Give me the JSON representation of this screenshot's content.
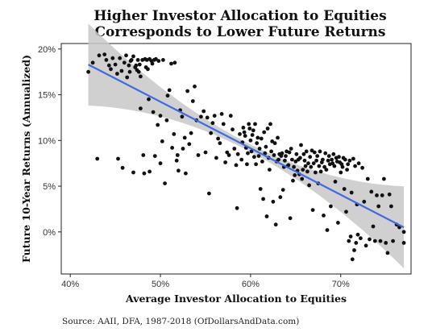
{
  "chart_data": {
    "type": "scatter",
    "title_lines": [
      "Higher Investor Allocation to Equities",
      "Corresponds to Lower Future Returns"
    ],
    "xlabel": "Average Investor Allocation to Equities",
    "ylabel": "Future 10-Year Returns (Annualized)",
    "source": "Source: AAII, DFA, 1987-2018 (OfDollarsAndData.com)",
    "xlim": [
      0.39,
      0.778
    ],
    "ylim": [
      -0.046,
      0.206
    ],
    "x_ticks": [
      0.4,
      0.5,
      0.6,
      0.7
    ],
    "x_tick_labels": [
      "40%",
      "50%",
      "60%",
      "70%"
    ],
    "y_ticks": [
      0.0,
      0.05,
      0.1,
      0.15,
      0.2
    ],
    "y_tick_labels": [
      "0%",
      "5%",
      "10%",
      "15%",
      "20%"
    ],
    "grid": false,
    "colors": {
      "points": "#111111",
      "trend_line": "#4169e1",
      "confidence_band": "#c8c8c8"
    },
    "trend_line": {
      "x": [
        0.42,
        0.77
      ],
      "y": [
        0.183,
        0.005
      ]
    },
    "points": [
      [
        0.42,
        0.175
      ],
      [
        0.425,
        0.185
      ],
      [
        0.43,
        0.08
      ],
      [
        0.432,
        0.193
      ],
      [
        0.438,
        0.194
      ],
      [
        0.44,
        0.188
      ],
      [
        0.443,
        0.182
      ],
      [
        0.445,
        0.178
      ],
      [
        0.447,
        0.19
      ],
      [
        0.45,
        0.183
      ],
      [
        0.452,
        0.173
      ],
      [
        0.453,
        0.08
      ],
      [
        0.455,
        0.19
      ],
      [
        0.457,
        0.176
      ],
      [
        0.458,
        0.07
      ],
      [
        0.46,
        0.185
      ],
      [
        0.462,
        0.193
      ],
      [
        0.463,
        0.169
      ],
      [
        0.465,
        0.182
      ],
      [
        0.466,
        0.175
      ],
      [
        0.467,
        0.187
      ],
      [
        0.468,
        0.188
      ],
      [
        0.47,
        0.192
      ],
      [
        0.47,
        0.065
      ],
      [
        0.472,
        0.18
      ],
      [
        0.473,
        0.182
      ],
      [
        0.474,
        0.177
      ],
      [
        0.475,
        0.188
      ],
      [
        0.476,
        0.175
      ],
      [
        0.477,
        0.183
      ],
      [
        0.478,
        0.17
      ],
      [
        0.478,
        0.135
      ],
      [
        0.48,
        0.188
      ],
      [
        0.481,
        0.084
      ],
      [
        0.482,
        0.064
      ],
      [
        0.483,
        0.189
      ],
      [
        0.484,
        0.18
      ],
      [
        0.485,
        0.188
      ],
      [
        0.486,
        0.178
      ],
      [
        0.487,
        0.145
      ],
      [
        0.488,
        0.189
      ],
      [
        0.488,
        0.066
      ],
      [
        0.49,
        0.187
      ],
      [
        0.491,
        0.184
      ],
      [
        0.492,
        0.131
      ],
      [
        0.493,
        0.188
      ],
      [
        0.494,
        0.083
      ],
      [
        0.495,
        0.189
      ],
      [
        0.497,
        0.117
      ],
      [
        0.498,
        0.187
      ],
      [
        0.5,
        0.127
      ],
      [
        0.5,
        0.075
      ],
      [
        0.502,
        0.099
      ],
      [
        0.503,
        0.188
      ],
      [
        0.505,
        0.053
      ],
      [
        0.507,
        0.122
      ],
      [
        0.508,
        0.149
      ],
      [
        0.51,
        0.155
      ],
      [
        0.512,
        0.184
      ],
      [
        0.513,
        0.092
      ],
      [
        0.515,
        0.107
      ],
      [
        0.516,
        0.185
      ],
      [
        0.518,
        0.078
      ],
      [
        0.519,
        0.084
      ],
      [
        0.52,
        0.067
      ],
      [
        0.522,
        0.133
      ],
      [
        0.524,
        0.126
      ],
      [
        0.525,
        0.091
      ],
      [
        0.527,
        0.103
      ],
      [
        0.528,
        0.064
      ],
      [
        0.53,
        0.154
      ],
      [
        0.532,
        0.096
      ],
      [
        0.534,
        0.108
      ],
      [
        0.536,
        0.143
      ],
      [
        0.538,
        0.159
      ],
      [
        0.54,
        0.122
      ],
      [
        0.542,
        0.084
      ],
      [
        0.545,
        0.126
      ],
      [
        0.548,
        0.132
      ],
      [
        0.55,
        0.087
      ],
      [
        0.552,
        0.125
      ],
      [
        0.554,
        0.042
      ],
      [
        0.556,
        0.108
      ],
      [
        0.558,
        0.119
      ],
      [
        0.56,
        0.127
      ],
      [
        0.562,
        0.081
      ],
      [
        0.564,
        0.102
      ],
      [
        0.566,
        0.097
      ],
      [
        0.568,
        0.129
      ],
      [
        0.57,
        0.118
      ],
      [
        0.572,
        0.076
      ],
      [
        0.574,
        0.087
      ],
      [
        0.576,
        0.084
      ],
      [
        0.578,
        0.127
      ],
      [
        0.58,
        0.112
      ],
      [
        0.582,
        0.091
      ],
      [
        0.584,
        0.073
      ],
      [
        0.585,
        0.026
      ],
      [
        0.586,
        0.085
      ],
      [
        0.588,
        0.107
      ],
      [
        0.59,
        0.079
      ],
      [
        0.591,
        0.098
      ],
      [
        0.592,
        0.114
      ],
      [
        0.593,
        0.109
      ],
      [
        0.594,
        0.105
      ],
      [
        0.595,
        0.092
      ],
      [
        0.596,
        0.074
      ],
      [
        0.597,
        0.086
      ],
      [
        0.598,
        0.118
      ],
      [
        0.599,
        0.113
      ],
      [
        0.6,
        0.1
      ],
      [
        0.601,
        0.088
      ],
      [
        0.602,
        0.106
      ],
      [
        0.603,
        0.111
      ],
      [
        0.604,
        0.082
      ],
      [
        0.605,
        0.118
      ],
      [
        0.606,
        0.074
      ],
      [
        0.607,
        0.097
      ],
      [
        0.608,
        0.103
      ],
      [
        0.609,
        0.083
      ],
      [
        0.61,
        0.091
      ],
      [
        0.611,
        0.047
      ],
      [
        0.612,
        0.102
      ],
      [
        0.613,
        0.077
      ],
      [
        0.614,
        0.036
      ],
      [
        0.615,
        0.109
      ],
      [
        0.616,
        0.086
      ],
      [
        0.617,
        0.093
      ],
      [
        0.618,
        0.017
      ],
      [
        0.619,
        0.113
      ],
      [
        0.62,
        0.081
      ],
      [
        0.621,
        0.068
      ],
      [
        0.622,
        0.118
      ],
      [
        0.623,
        0.088
      ],
      [
        0.624,
        0.099
      ],
      [
        0.625,
        0.033
      ],
      [
        0.626,
        0.084
      ],
      [
        0.627,
        0.097
      ],
      [
        0.628,
        0.008
      ],
      [
        0.629,
        0.077
      ],
      [
        0.63,
        0.103
      ],
      [
        0.631,
        0.079
      ],
      [
        0.632,
        0.085
      ],
      [
        0.633,
        0.038
      ],
      [
        0.634,
        0.083
      ],
      [
        0.635,
        0.086
      ],
      [
        0.636,
        0.046
      ],
      [
        0.637,
        0.071
      ],
      [
        0.638,
        0.078
      ],
      [
        0.639,
        0.083
      ],
      [
        0.64,
        0.088
      ],
      [
        0.641,
        0.072
      ],
      [
        0.642,
        0.073
      ],
      [
        0.643,
        0.087
      ],
      [
        0.644,
        0.015
      ],
      [
        0.645,
        0.091
      ],
      [
        0.646,
        0.079
      ],
      [
        0.647,
        0.056
      ],
      [
        0.648,
        0.071
      ],
      [
        0.649,
        0.062
      ],
      [
        0.65,
        0.077
      ],
      [
        0.651,
        0.085
      ],
      [
        0.652,
        0.067
      ],
      [
        0.653,
        0.079
      ],
      [
        0.654,
        0.063
      ],
      [
        0.655,
        0.081
      ],
      [
        0.656,
        0.095
      ],
      [
        0.657,
        0.058
      ],
      [
        0.658,
        0.068
      ],
      [
        0.659,
        0.085
      ],
      [
        0.66,
        0.078
      ],
      [
        0.661,
        0.072
      ],
      [
        0.662,
        0.088
      ],
      [
        0.663,
        0.066
      ],
      [
        0.664,
        0.075
      ],
      [
        0.665,
        0.051
      ],
      [
        0.666,
        0.082
      ],
      [
        0.667,
        0.071
      ],
      [
        0.668,
        0.089
      ],
      [
        0.669,
        0.024
      ],
      [
        0.67,
        0.075
      ],
      [
        0.671,
        0.087
      ],
      [
        0.672,
        0.065
      ],
      [
        0.673,
        0.078
      ],
      [
        0.674,
        0.083
      ],
      [
        0.675,
        0.053
      ],
      [
        0.676,
        0.072
      ],
      [
        0.677,
        0.088
      ],
      [
        0.678,
        0.066
      ],
      [
        0.679,
        0.076
      ],
      [
        0.68,
        0.079
      ],
      [
        0.681,
        0.018
      ],
      [
        0.682,
        0.071
      ],
      [
        0.683,
        0.086
      ],
      [
        0.684,
        0.068
      ],
      [
        0.685,
        0.002
      ],
      [
        0.686,
        0.078
      ],
      [
        0.687,
        0.083
      ],
      [
        0.688,
        0.074
      ],
      [
        0.689,
        0.028
      ],
      [
        0.69,
        0.079
      ],
      [
        0.691,
        0.075
      ],
      [
        0.692,
        0.085
      ],
      [
        0.693,
        0.072
      ],
      [
        0.694,
        0.055
      ],
      [
        0.695,
        0.081
      ],
      [
        0.696,
        0.077
      ],
      [
        0.697,
        0.01
      ],
      [
        0.698,
        0.082
      ],
      [
        0.699,
        0.076
      ],
      [
        0.7,
        0.065
      ],
      [
        0.701,
        0.074
      ],
      [
        0.702,
        0.071
      ],
      [
        0.703,
        0.081
      ],
      [
        0.704,
        0.047
      ],
      [
        0.705,
        0.079
      ],
      [
        0.706,
        0.022
      ],
      [
        0.707,
        0.068
      ],
      [
        0.708,
        0.074
      ],
      [
        0.709,
        -0.01
      ],
      [
        0.71,
        0.078
      ],
      [
        0.711,
        -0.005
      ],
      [
        0.712,
        0.043
      ],
      [
        0.713,
        -0.03
      ],
      [
        0.714,
        0.08
      ],
      [
        0.715,
        -0.02
      ],
      [
        0.716,
        0.072
      ],
      [
        0.717,
        -0.012
      ],
      [
        0.718,
        0.03
      ],
      [
        0.719,
        -0.003
      ],
      [
        0.72,
        0.075
      ],
      [
        0.722,
        -0.007
      ],
      [
        0.724,
        0.07
      ],
      [
        0.726,
        0.033
      ],
      [
        0.728,
        -0.015
      ],
      [
        0.73,
        0.058
      ],
      [
        0.732,
        -0.008
      ],
      [
        0.734,
        0.044
      ],
      [
        0.736,
        0.006
      ],
      [
        0.738,
        -0.01
      ],
      [
        0.74,
        0.04
      ],
      [
        0.742,
        0.028
      ],
      [
        0.744,
        -0.01
      ],
      [
        0.746,
        0.04
      ],
      [
        0.748,
        0.058
      ],
      [
        0.75,
        -0.012
      ],
      [
        0.752,
        -0.023
      ],
      [
        0.754,
        0.041
      ],
      [
        0.756,
        0.028
      ],
      [
        0.758,
        -0.01
      ],
      [
        0.762,
        0.008
      ],
      [
        0.765,
        0.005
      ],
      [
        0.77,
        -0.012
      ],
      [
        0.77,
        0.0
      ]
    ]
  }
}
